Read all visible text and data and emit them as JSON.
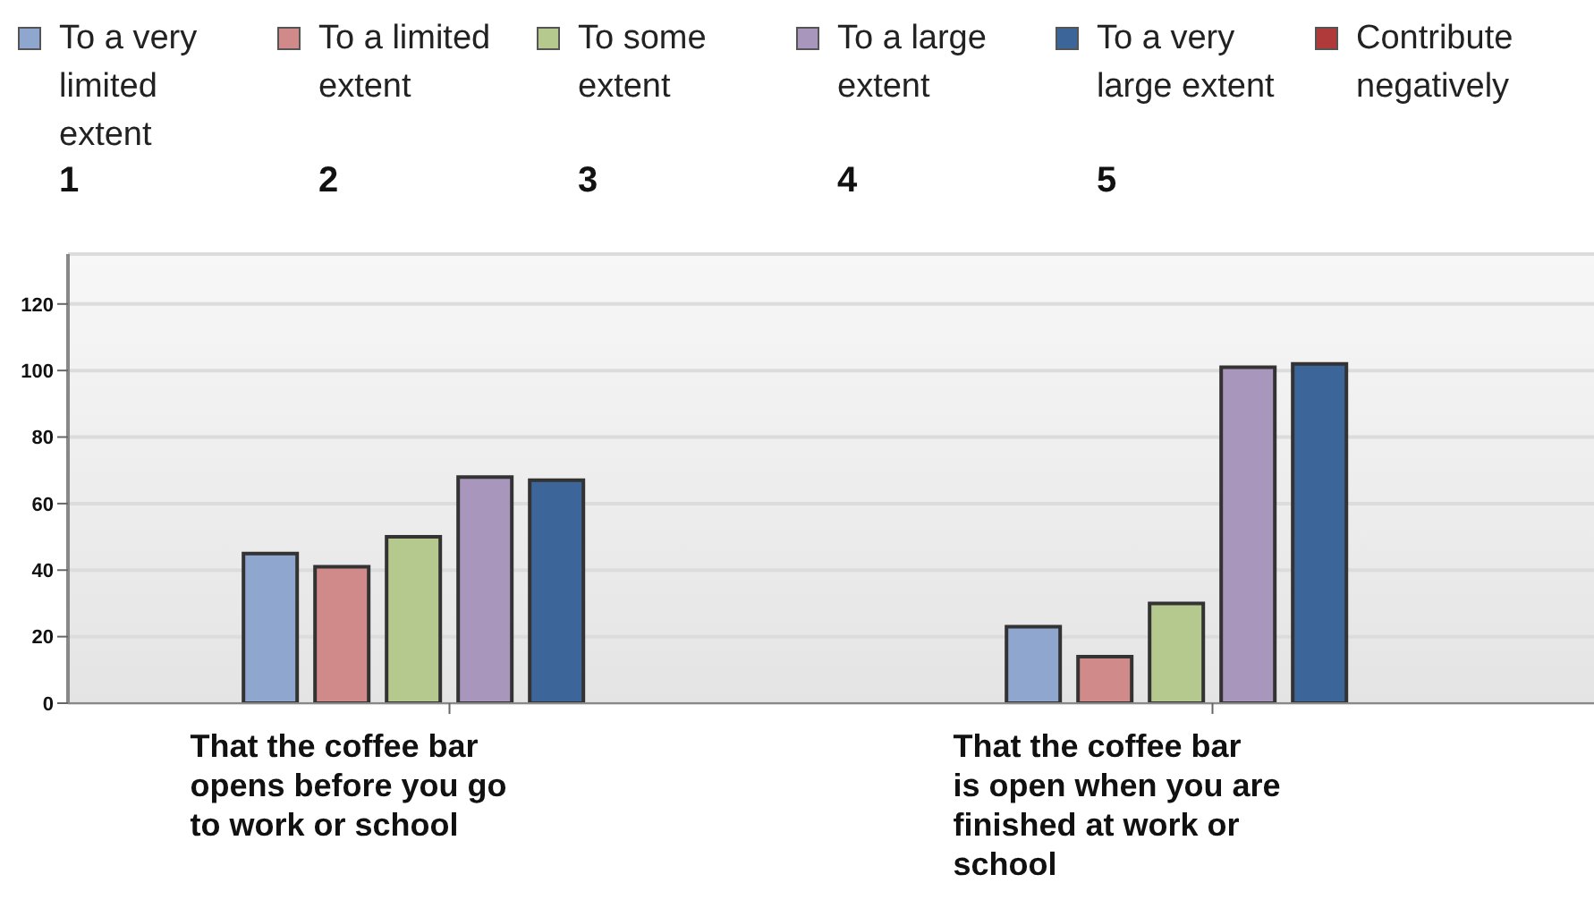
{
  "chart_data": {
    "type": "bar",
    "categories": [
      "That the coffee bar opens before you go to work or school",
      "That the coffee bar is open when you are finished at work or school"
    ],
    "series": [
      {
        "name": "To a very limited extent",
        "color": "#8fa6cf",
        "values": [
          45,
          23
        ]
      },
      {
        "name": "To a limited extent",
        "color": "#d08a8a",
        "values": [
          41,
          14
        ]
      },
      {
        "name": "To some extent",
        "color": "#b5c98e",
        "values": [
          50,
          30
        ]
      },
      {
        "name": "To a large extent",
        "color": "#a996bd",
        "values": [
          68,
          101
        ]
      },
      {
        "name": "To a very large extent",
        "color": "#3c669a",
        "values": [
          67,
          102
        ]
      },
      {
        "name": "Contribute negatively",
        "color": "#b03a3a",
        "values": [
          0,
          0
        ]
      }
    ],
    "annotations": [
      "1",
      "2",
      "3",
      "4",
      "5"
    ],
    "ylim": [
      0,
      135
    ],
    "yticks": [
      0,
      20,
      40,
      60,
      80,
      100,
      120
    ],
    "grid": "y",
    "legend": "top"
  }
}
